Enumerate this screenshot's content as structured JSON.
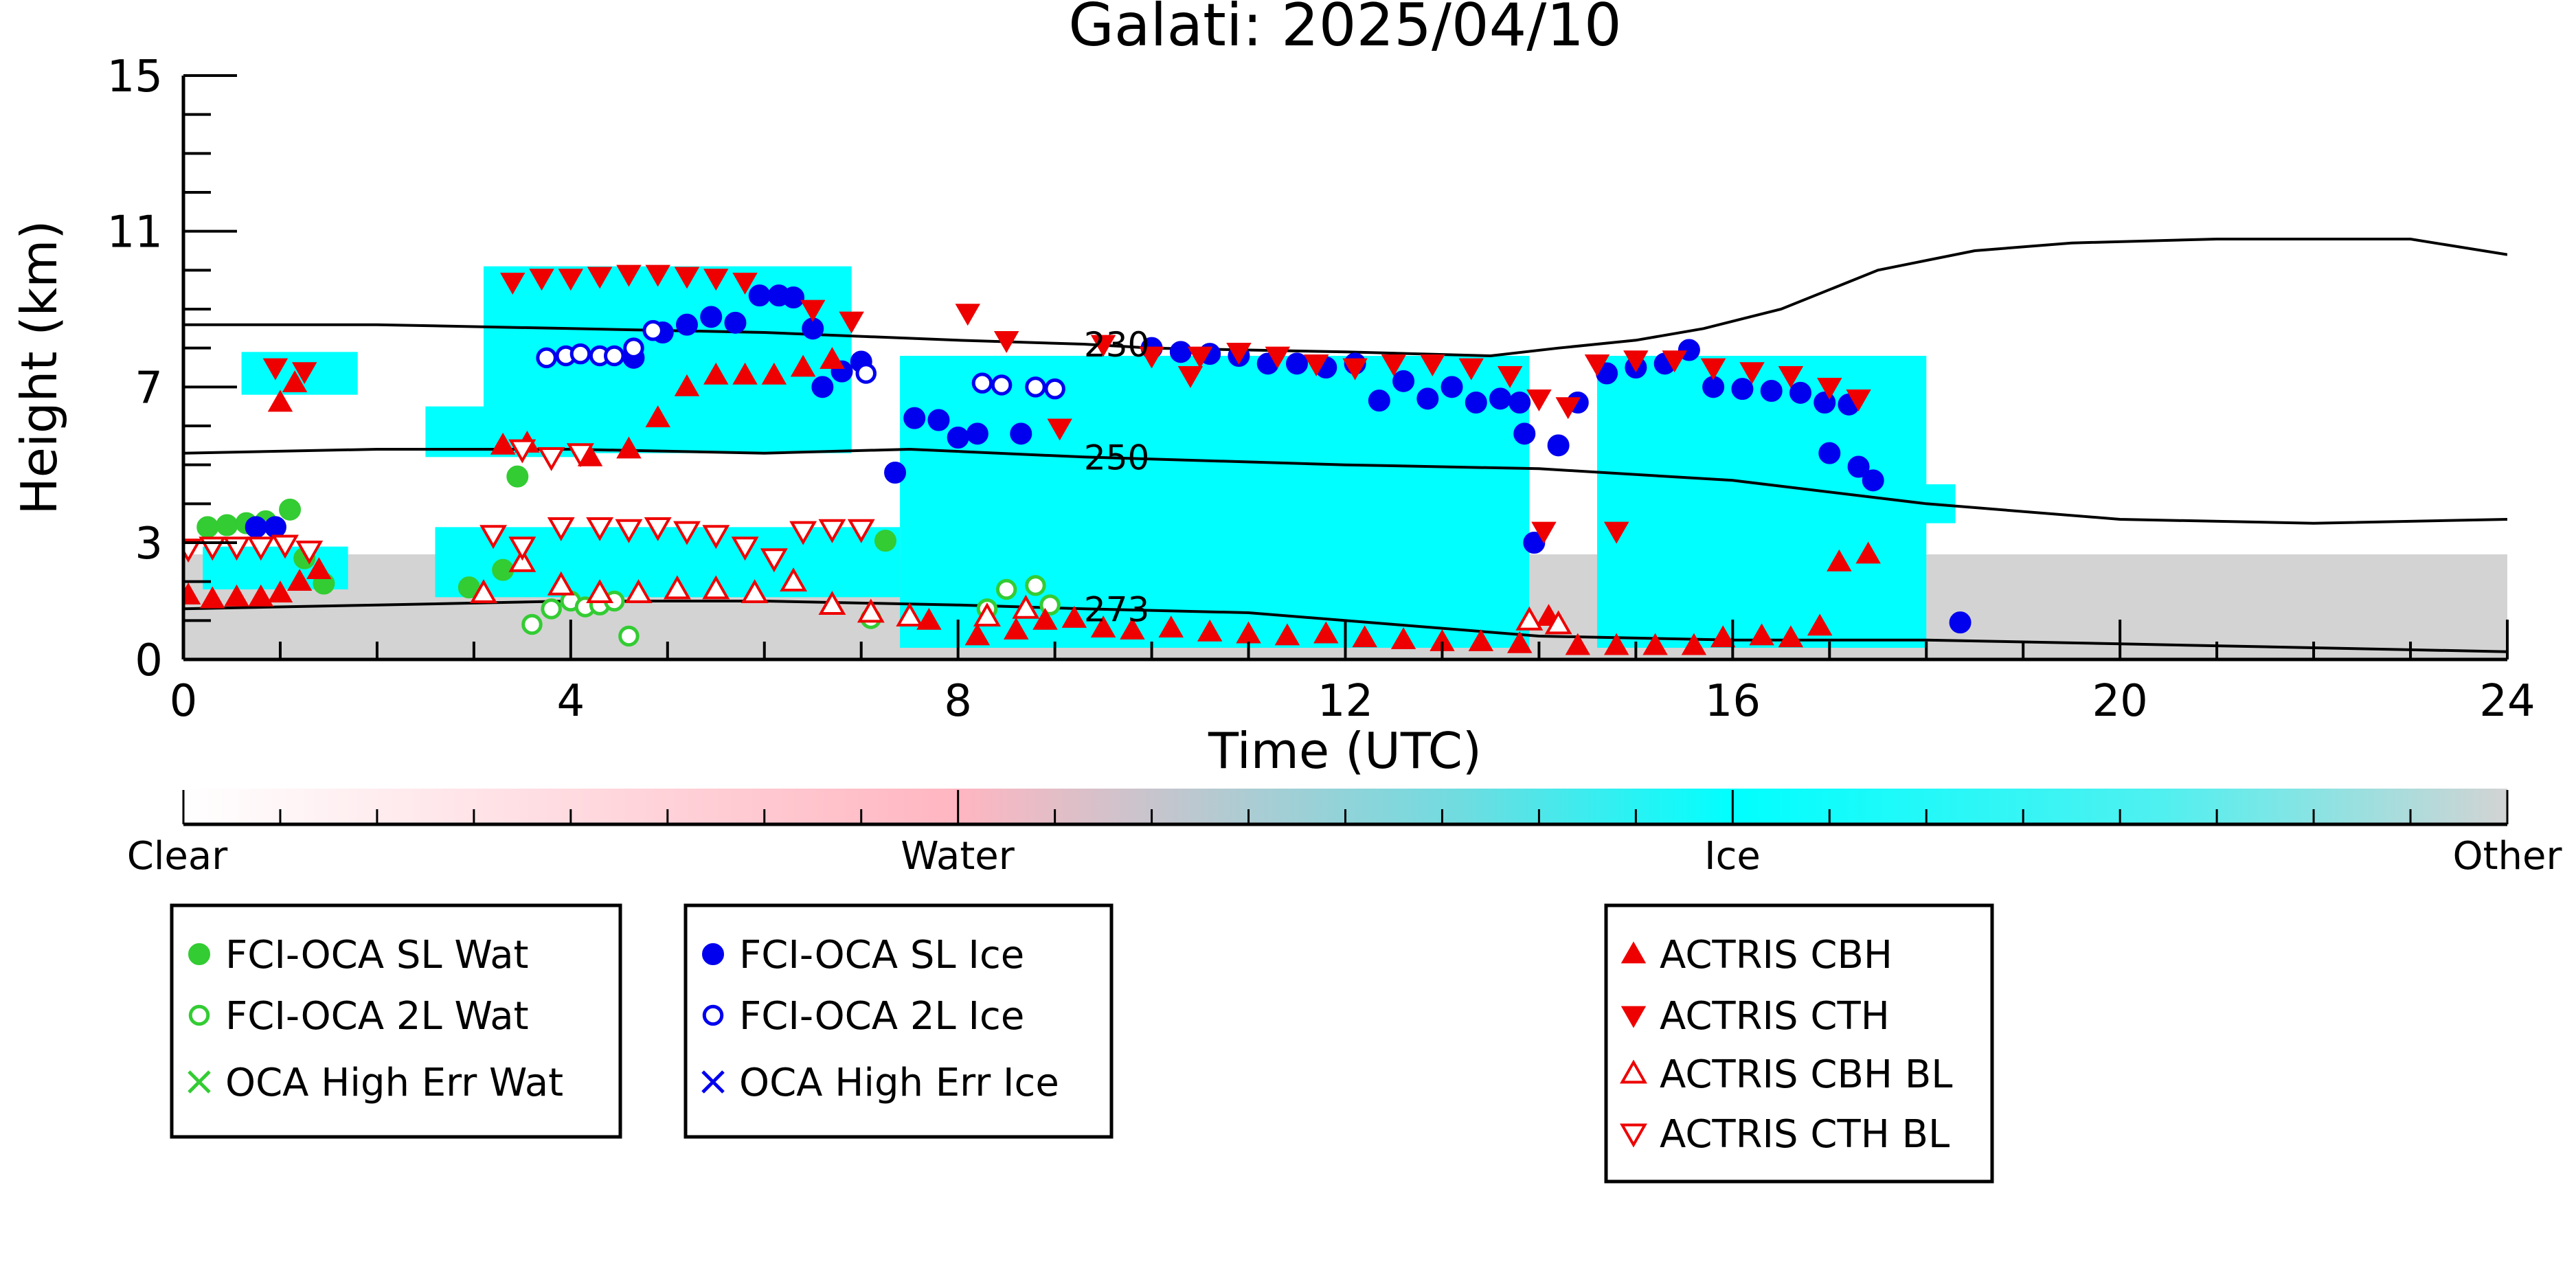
{
  "chart_data": {
    "type": "scatter",
    "title": "Galati: 2025/04/10",
    "xlabel": "Time (UTC)",
    "ylabel": "Height (km)",
    "xlim": [
      0,
      24
    ],
    "ylim": [
      0,
      15
    ],
    "x_ticks": [
      0,
      4,
      8,
      12,
      16,
      20,
      24
    ],
    "y_ticks": [
      0,
      3,
      7,
      11,
      15
    ],
    "grid": false,
    "colorbar": {
      "labels": [
        "Clear",
        "Water",
        "Ice",
        "Other"
      ],
      "colors": {
        "clear": "#ffffff",
        "water": "#ffb6c1",
        "ice": "#00ffff",
        "other": "#d3d3d3"
      }
    },
    "isotherms": [
      {
        "label": "230",
        "x": [
          0,
          2,
          4,
          6,
          8,
          9.3,
          10,
          12,
          13.5,
          14.2,
          15,
          15.7,
          16.5,
          17.5,
          18.5,
          19.5,
          21,
          23,
          24
        ],
        "y": [
          8.6,
          8.6,
          8.5,
          8.4,
          8.2,
          8.1,
          8.0,
          7.9,
          7.8,
          8.0,
          8.2,
          8.5,
          9.0,
          10.0,
          10.5,
          10.7,
          10.8,
          10.8,
          10.4
        ]
      },
      {
        "label": "250",
        "x": [
          0,
          2,
          4,
          6,
          7.5,
          9.3,
          12,
          14,
          16,
          18,
          20,
          22,
          24
        ],
        "y": [
          5.3,
          5.4,
          5.4,
          5.3,
          5.4,
          5.2,
          5.0,
          4.9,
          4.6,
          4.0,
          3.6,
          3.5,
          3.6
        ]
      },
      {
        "label": "273",
        "x": [
          0,
          2,
          4,
          6,
          8,
          9.3,
          11,
          12.5,
          14,
          16,
          18,
          20,
          22,
          24
        ],
        "y": [
          1.3,
          1.4,
          1.5,
          1.5,
          1.4,
          1.3,
          1.2,
          0.9,
          0.6,
          0.5,
          0.5,
          0.4,
          0.3,
          0.2
        ]
      }
    ],
    "cloud_regions": [
      {
        "type": "other",
        "x": [
          0,
          24
        ],
        "y": [
          0,
          2.7
        ]
      },
      {
        "type": "ice",
        "x": [
          0.2,
          1.7
        ],
        "y": [
          1.8,
          2.9
        ]
      },
      {
        "type": "ice",
        "x": [
          2.6,
          7.4
        ],
        "y": [
          1.6,
          3.4
        ]
      },
      {
        "type": "ice",
        "x": [
          0.6,
          1.8
        ],
        "y": [
          6.8,
          7.9
        ]
      },
      {
        "type": "ice",
        "x": [
          2.5,
          4.2
        ],
        "y": [
          5.2,
          6.5
        ]
      },
      {
        "type": "ice",
        "x": [
          3.1,
          6.9
        ],
        "y": [
          5.3,
          10.1
        ]
      },
      {
        "type": "ice",
        "x": [
          7.4,
          13.9
        ],
        "y": [
          0.3,
          7.8
        ]
      },
      {
        "type": "ice",
        "x": [
          14.6,
          18.0
        ],
        "y": [
          0.3,
          7.8
        ]
      },
      {
        "type": "ice",
        "x": [
          17.1,
          18.3
        ],
        "y": [
          3.5,
          4.5
        ]
      }
    ],
    "series": [
      {
        "name": "FCI-OCA SL Wat",
        "marker": "circle-filled",
        "color": "#33cc33",
        "points": [
          [
            0.25,
            3.4
          ],
          [
            0.45,
            3.45
          ],
          [
            0.65,
            3.5
          ],
          [
            0.85,
            3.55
          ],
          [
            1.1,
            3.85
          ],
          [
            1.25,
            2.6
          ],
          [
            1.45,
            1.95
          ],
          [
            2.95,
            1.85
          ],
          [
            3.3,
            2.3
          ],
          [
            3.45,
            4.7
          ],
          [
            7.25,
            3.05
          ]
        ]
      },
      {
        "name": "FCI-OCA 2L Wat",
        "marker": "circle-open",
        "color": "#33cc33",
        "points": [
          [
            3.6,
            0.9
          ],
          [
            3.8,
            1.3
          ],
          [
            4.0,
            1.5
          ],
          [
            4.15,
            1.35
          ],
          [
            4.3,
            1.4
          ],
          [
            4.45,
            1.5
          ],
          [
            4.6,
            0.6
          ],
          [
            7.1,
            1.05
          ],
          [
            8.3,
            1.3
          ],
          [
            8.5,
            1.8
          ],
          [
            8.8,
            1.9
          ],
          [
            8.95,
            1.4
          ]
        ]
      },
      {
        "name": "OCA High Err Wat",
        "marker": "x",
        "color": "#33cc33",
        "points": []
      },
      {
        "name": "FCI-OCA SL Ice",
        "marker": "circle-filled",
        "color": "#0000ee",
        "points": [
          [
            0.75,
            3.4
          ],
          [
            0.95,
            3.4
          ],
          [
            4.65,
            7.75
          ],
          [
            4.95,
            8.4
          ],
          [
            5.2,
            8.6
          ],
          [
            5.45,
            8.8
          ],
          [
            5.7,
            8.65
          ],
          [
            5.95,
            9.35
          ],
          [
            6.15,
            9.35
          ],
          [
            6.3,
            9.3
          ],
          [
            6.5,
            8.5
          ],
          [
            6.6,
            7.0
          ],
          [
            6.8,
            7.4
          ],
          [
            7.0,
            7.65
          ],
          [
            7.35,
            4.8
          ],
          [
            7.55,
            6.2
          ],
          [
            7.8,
            6.15
          ],
          [
            8.0,
            5.7
          ],
          [
            8.2,
            5.8
          ],
          [
            8.65,
            5.8
          ],
          [
            10.0,
            8.0
          ],
          [
            10.3,
            7.9
          ],
          [
            10.6,
            7.85
          ],
          [
            10.9,
            7.8
          ],
          [
            11.2,
            7.6
          ],
          [
            11.5,
            7.6
          ],
          [
            11.8,
            7.5
          ],
          [
            12.1,
            7.6
          ],
          [
            12.35,
            6.65
          ],
          [
            12.6,
            7.15
          ],
          [
            12.85,
            6.7
          ],
          [
            13.1,
            7.0
          ],
          [
            13.35,
            6.6
          ],
          [
            13.6,
            6.7
          ],
          [
            13.8,
            6.6
          ],
          [
            13.85,
            5.8
          ],
          [
            13.95,
            3.0
          ],
          [
            14.2,
            5.5
          ],
          [
            14.4,
            6.6
          ],
          [
            14.7,
            7.35
          ],
          [
            15.0,
            7.5
          ],
          [
            15.3,
            7.6
          ],
          [
            15.55,
            7.95
          ],
          [
            15.8,
            7.0
          ],
          [
            16.1,
            6.95
          ],
          [
            16.4,
            6.9
          ],
          [
            16.7,
            6.85
          ],
          [
            16.95,
            6.6
          ],
          [
            17.2,
            6.55
          ],
          [
            17.0,
            5.3
          ],
          [
            17.3,
            4.95
          ],
          [
            17.45,
            4.6
          ],
          [
            18.35,
            0.95
          ]
        ]
      },
      {
        "name": "FCI-OCA 2L Ice",
        "marker": "circle-open",
        "color": "#0000ee",
        "points": [
          [
            3.75,
            7.75
          ],
          [
            3.95,
            7.8
          ],
          [
            4.1,
            7.85
          ],
          [
            4.3,
            7.8
          ],
          [
            4.45,
            7.8
          ],
          [
            4.65,
            8.0
          ],
          [
            4.85,
            8.45
          ],
          [
            7.05,
            7.35
          ],
          [
            8.25,
            7.1
          ],
          [
            8.45,
            7.05
          ],
          [
            8.8,
            7.0
          ],
          [
            9.0,
            6.95
          ]
        ]
      },
      {
        "name": "OCA High Err Ice",
        "marker": "x",
        "color": "#0000ee",
        "points": []
      },
      {
        "name": "ACTRIS CBH",
        "marker": "triangle-up-filled",
        "color": "#ee0000",
        "points": [
          [
            0.05,
            1.65
          ],
          [
            0.3,
            1.55
          ],
          [
            0.55,
            1.6
          ],
          [
            0.8,
            1.6
          ],
          [
            1.0,
            1.7
          ],
          [
            1.2,
            2.0
          ],
          [
            1.4,
            2.3
          ],
          [
            4.2,
            5.2
          ],
          [
            4.6,
            5.4
          ],
          [
            4.9,
            6.2
          ],
          [
            5.2,
            7.0
          ],
          [
            5.5,
            7.3
          ],
          [
            5.8,
            7.3
          ],
          [
            6.1,
            7.3
          ],
          [
            6.4,
            7.5
          ],
          [
            6.7,
            7.7
          ],
          [
            1.0,
            6.6
          ],
          [
            1.15,
            7.1
          ],
          [
            3.3,
            5.5
          ],
          [
            3.55,
            5.55
          ],
          [
            7.7,
            1.0
          ],
          [
            8.2,
            0.6
          ],
          [
            8.6,
            0.75
          ],
          [
            8.9,
            1.0
          ],
          [
            9.2,
            1.05
          ],
          [
            9.5,
            0.8
          ],
          [
            9.8,
            0.75
          ],
          [
            10.2,
            0.8
          ],
          [
            10.6,
            0.7
          ],
          [
            11.0,
            0.65
          ],
          [
            11.4,
            0.6
          ],
          [
            11.8,
            0.65
          ],
          [
            12.2,
            0.55
          ],
          [
            12.6,
            0.5
          ],
          [
            13.0,
            0.45
          ],
          [
            13.4,
            0.45
          ],
          [
            13.8,
            0.4
          ],
          [
            14.1,
            1.1
          ],
          [
            14.4,
            0.35
          ],
          [
            14.8,
            0.35
          ],
          [
            15.2,
            0.35
          ],
          [
            15.6,
            0.35
          ],
          [
            15.9,
            0.55
          ],
          [
            16.3,
            0.6
          ],
          [
            16.6,
            0.55
          ],
          [
            16.9,
            0.85
          ],
          [
            17.1,
            2.5
          ],
          [
            17.4,
            2.7
          ]
        ]
      },
      {
        "name": "ACTRIS CTH",
        "marker": "triangle-down-filled",
        "color": "#ee0000",
        "points": [
          [
            0.95,
            7.5
          ],
          [
            1.25,
            7.4
          ],
          [
            3.4,
            9.7
          ],
          [
            3.7,
            9.8
          ],
          [
            4.0,
            9.8
          ],
          [
            4.3,
            9.85
          ],
          [
            4.6,
            9.9
          ],
          [
            4.9,
            9.9
          ],
          [
            5.2,
            9.85
          ],
          [
            5.5,
            9.8
          ],
          [
            5.8,
            9.7
          ],
          [
            6.5,
            9.0
          ],
          [
            6.9,
            8.7
          ],
          [
            8.1,
            8.9
          ],
          [
            8.5,
            8.2
          ],
          [
            9.5,
            8.1
          ],
          [
            10.0,
            7.8
          ],
          [
            10.5,
            7.8
          ],
          [
            10.9,
            7.9
          ],
          [
            11.3,
            7.8
          ],
          [
            11.7,
            7.6
          ],
          [
            12.1,
            7.5
          ],
          [
            12.5,
            7.6
          ],
          [
            12.9,
            7.6
          ],
          [
            13.3,
            7.5
          ],
          [
            13.7,
            7.3
          ],
          [
            10.4,
            7.3
          ],
          [
            14.0,
            6.7
          ],
          [
            14.3,
            6.5
          ],
          [
            14.6,
            7.6
          ],
          [
            15.0,
            7.7
          ],
          [
            15.4,
            7.7
          ],
          [
            15.8,
            7.5
          ],
          [
            16.2,
            7.4
          ],
          [
            16.6,
            7.3
          ],
          [
            17.0,
            7.0
          ],
          [
            17.3,
            6.7
          ],
          [
            9.05,
            5.95
          ],
          [
            14.05,
            3.3
          ],
          [
            14.8,
            3.3
          ]
        ]
      },
      {
        "name": "ACTRIS CBH BL",
        "marker": "triangle-up-open",
        "color": "#ee0000",
        "points": [
          [
            3.1,
            1.7
          ],
          [
            3.5,
            2.5
          ],
          [
            3.9,
            1.9
          ],
          [
            4.3,
            1.7
          ],
          [
            4.7,
            1.7
          ],
          [
            5.1,
            1.8
          ],
          [
            5.5,
            1.8
          ],
          [
            5.9,
            1.7
          ],
          [
            6.3,
            2.0
          ],
          [
            6.7,
            1.4
          ],
          [
            7.1,
            1.2
          ],
          [
            7.5,
            1.1
          ],
          [
            8.3,
            1.1
          ],
          [
            8.7,
            1.3
          ],
          [
            13.9,
            1.0
          ],
          [
            14.2,
            0.9
          ]
        ]
      },
      {
        "name": "ACTRIS CTH BL",
        "marker": "triangle-down-open",
        "color": "#ee0000",
        "points": [
          [
            0.05,
            2.85
          ],
          [
            0.3,
            2.9
          ],
          [
            0.55,
            2.9
          ],
          [
            0.8,
            2.9
          ],
          [
            1.05,
            2.95
          ],
          [
            1.3,
            2.8
          ],
          [
            3.2,
            3.2
          ],
          [
            3.5,
            2.9
          ],
          [
            3.9,
            3.4
          ],
          [
            4.3,
            3.4
          ],
          [
            4.6,
            3.35
          ],
          [
            4.9,
            3.4
          ],
          [
            5.2,
            3.3
          ],
          [
            5.5,
            3.2
          ],
          [
            5.8,
            2.9
          ],
          [
            6.1,
            2.6
          ],
          [
            6.4,
            3.3
          ],
          [
            6.7,
            3.35
          ],
          [
            7.0,
            3.35
          ],
          [
            3.5,
            5.4
          ],
          [
            3.8,
            5.2
          ],
          [
            4.1,
            5.3
          ]
        ]
      }
    ],
    "legend_placement": "bottom"
  }
}
